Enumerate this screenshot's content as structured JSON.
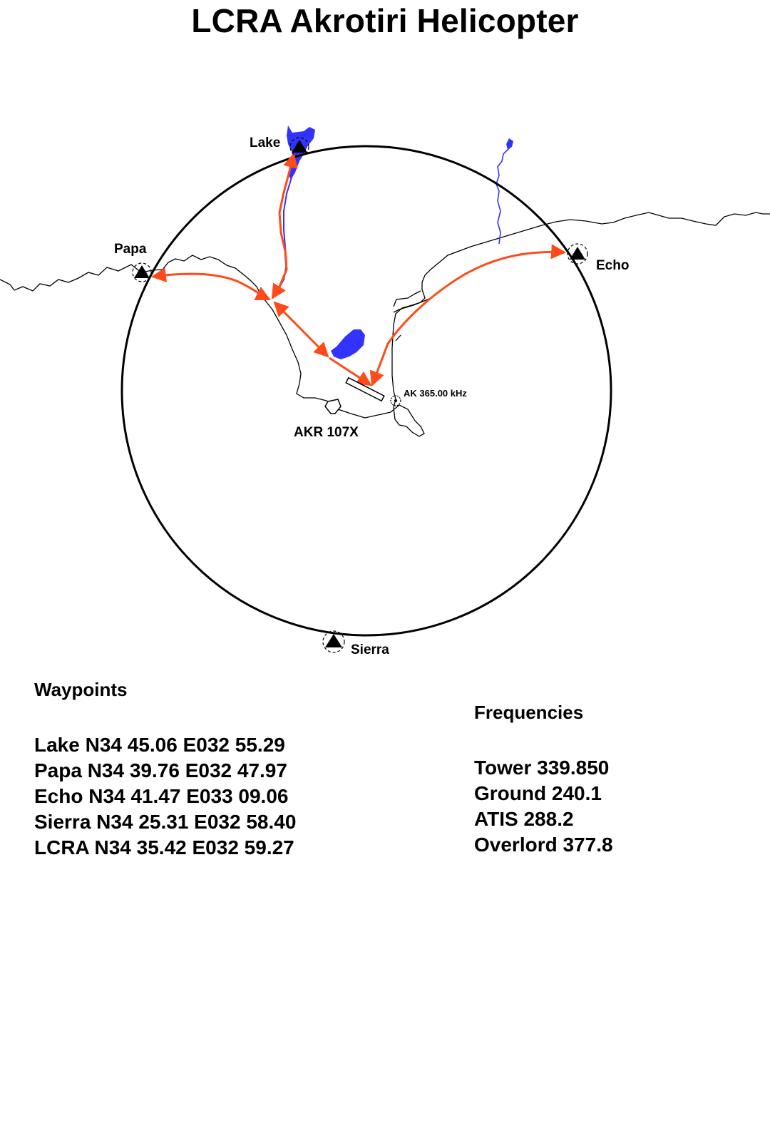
{
  "title": "LCRA Akrotiri Helicopter",
  "map": {
    "waypoint_labels": {
      "lake": "Lake",
      "papa": "Papa",
      "echo": "Echo",
      "sierra": "Sierra"
    },
    "ndb_label": "AK 365.00 kHz",
    "tacan_label": "AKR 107X",
    "colors": {
      "route": "#ff4a1a",
      "water": "#3333ff",
      "ring": "#000000"
    }
  },
  "waypoints": {
    "heading": "Waypoints",
    "rows": [
      "Lake N34 45.06 E032 55.29",
      "Papa N34 39.76 E032 47.97",
      "Echo N34 41.47 E033 09.06",
      "Sierra N34 25.31 E032 58.40",
      "LCRA N34 35.42 E032 59.27"
    ]
  },
  "frequencies": {
    "heading": "Frequencies",
    "rows": [
      "Tower 339.850",
      "Ground 240.1",
      "ATIS 288.2",
      "Overlord 377.8"
    ]
  }
}
